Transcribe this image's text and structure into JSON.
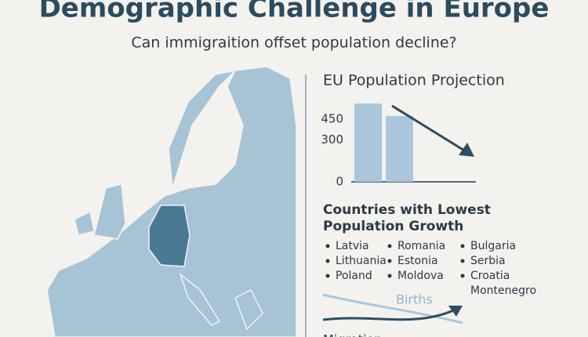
{
  "header": {
    "title": "Demographic Challenge in Europe",
    "subtitle": "Can immigraition offset population decline?"
  },
  "chart_data": {
    "type": "bar",
    "title": "EU Population Projection",
    "categories": [
      null,
      null
    ],
    "values": [
      560,
      470
    ],
    "color": "#a9c6dc",
    "ylim": [
      0,
      600
    ],
    "yticks": [
      0,
      300,
      450
    ]
  },
  "growth": {
    "title": "Countries with Lowest Population Growth",
    "columns": [
      [
        "Latvia",
        "Lithuania",
        "Poland"
      ],
      [
        "Romania",
        "Estonia",
        "Moldova"
      ],
      [
        "Bulgaria",
        "Serbia",
        "Croatia",
        "Montenegro"
      ]
    ]
  },
  "flows": {
    "labels": [
      "Births",
      "Migration"
    ]
  }
}
